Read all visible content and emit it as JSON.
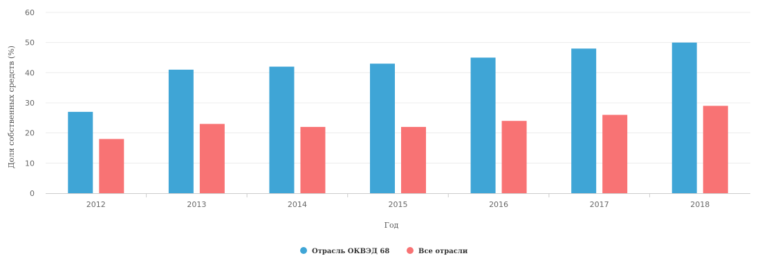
{
  "chart_data": {
    "type": "bar",
    "title": "",
    "xlabel": "Год",
    "ylabel": "Доля собственных средств (%)",
    "categories": [
      "2012",
      "2013",
      "2014",
      "2015",
      "2016",
      "2017",
      "2018"
    ],
    "series": [
      {
        "name": "Отрасль ОКВЭД 68",
        "color": "#3fa5d6",
        "values": [
          27,
          41,
          42,
          43,
          45,
          48,
          50
        ]
      },
      {
        "name": "Все отрасли",
        "color": "#f87374",
        "values": [
          18,
          23,
          22,
          22,
          24,
          26,
          29
        ]
      }
    ],
    "ylim": [
      0,
      60
    ],
    "yticks": [
      0,
      10,
      20,
      30,
      40,
      50,
      60
    ],
    "grid": true,
    "legend_position": "bottom-center"
  }
}
